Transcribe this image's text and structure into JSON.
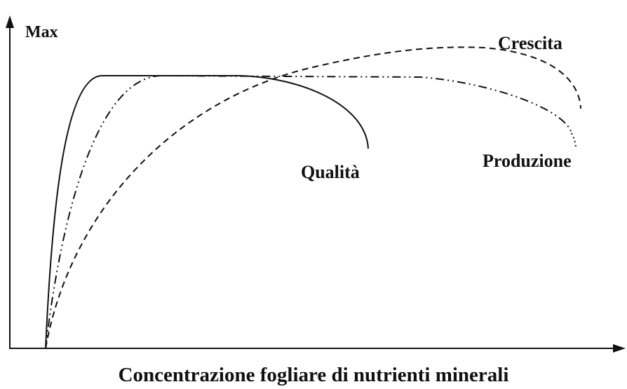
{
  "y_axis_label": "Max",
  "x_axis_label": "Concentrazione fogliare di nutrienti minerali",
  "curves": [
    {
      "label": "Qualità"
    },
    {
      "label": "Produzione"
    },
    {
      "label": "Crescita"
    }
  ]
}
